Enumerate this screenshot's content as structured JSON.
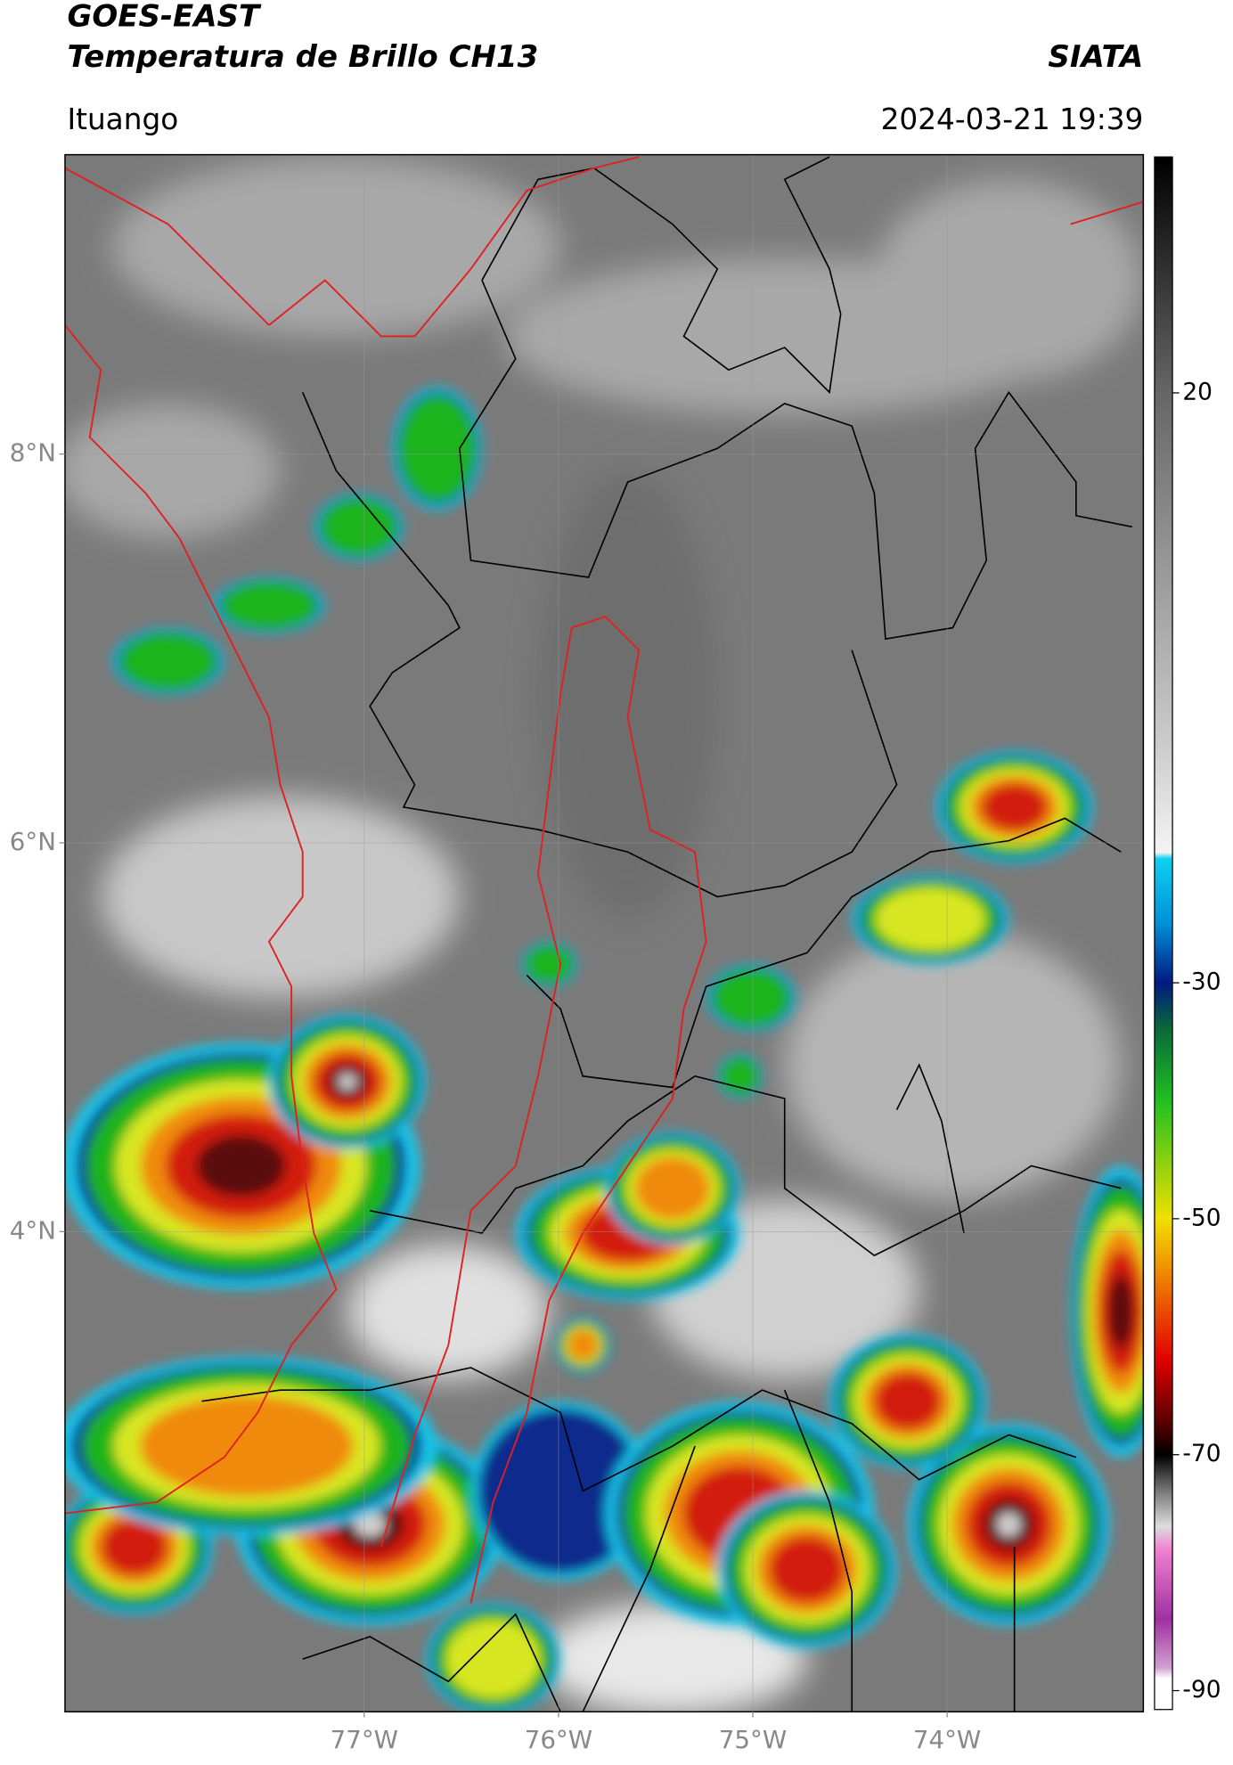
{
  "header": {
    "title": "GOES-EAST",
    "subtitle": "Temperatura de Brillo CH13",
    "source": "SIATA",
    "location": "Ituango",
    "timestamp": "2024-03-21 19:39"
  },
  "map": {
    "xlim": [
      -78.54,
      -72.99
    ],
    "ylim": [
      1.53,
      9.54
    ],
    "xticks": [
      {
        "value": -77,
        "label": "77°W"
      },
      {
        "value": -76,
        "label": "76°W"
      },
      {
        "value": -75,
        "label": "75°W"
      },
      {
        "value": -74,
        "label": "74°W"
      }
    ],
    "yticks": [
      {
        "value": 8,
        "label": "8°N"
      },
      {
        "value": 6,
        "label": "6°N"
      },
      {
        "value": 4,
        "label": "4°N"
      }
    ],
    "grid": true
  },
  "colorbar": {
    "lim": [
      -91.6,
      40
    ],
    "ticks": [
      20,
      -30,
      -50,
      -70,
      -90
    ]
  }
}
